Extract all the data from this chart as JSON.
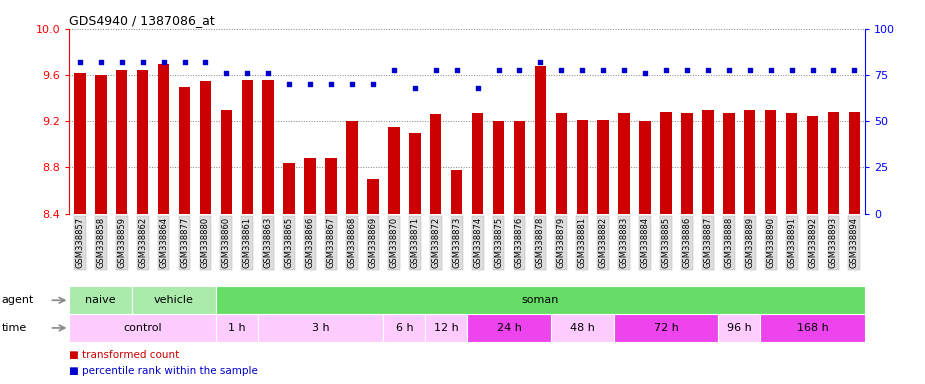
{
  "title": "GDS4940 / 1387086_at",
  "bar_color": "#cc0000",
  "dot_color": "#0000cc",
  "ylim_left": [
    8.4,
    10.0
  ],
  "ylim_right": [
    0,
    100
  ],
  "yticks_left": [
    8.4,
    8.8,
    9.2,
    9.6,
    10.0
  ],
  "yticks_right": [
    0,
    25,
    50,
    75,
    100
  ],
  "bg_color": "#ffffff",
  "plot_bg": "#ffffff",
  "gsm_labels": [
    "GSM338857",
    "GSM338858",
    "GSM338859",
    "GSM338862",
    "GSM338864",
    "GSM338877",
    "GSM338880",
    "GSM338860",
    "GSM338861",
    "GSM338863",
    "GSM338865",
    "GSM338866",
    "GSM338867",
    "GSM338868",
    "GSM338869",
    "GSM338870",
    "GSM338871",
    "GSM338872",
    "GSM338873",
    "GSM338874",
    "GSM338875",
    "GSM338876",
    "GSM338878",
    "GSM338879",
    "GSM338881",
    "GSM338882",
    "GSM338883",
    "GSM338884",
    "GSM338885",
    "GSM338886",
    "GSM338887",
    "GSM338888",
    "GSM338889",
    "GSM338890",
    "GSM338891",
    "GSM338892",
    "GSM338893",
    "GSM338894"
  ],
  "bar_values": [
    9.62,
    9.6,
    9.65,
    9.65,
    9.7,
    9.5,
    9.55,
    9.3,
    9.56,
    9.56,
    8.84,
    8.88,
    8.88,
    9.2,
    8.7,
    9.15,
    9.1,
    9.26,
    8.78,
    9.27,
    9.2,
    9.2,
    9.68,
    9.27,
    9.21,
    9.21,
    9.27,
    9.2,
    9.28,
    9.27,
    9.3,
    9.27,
    9.3,
    9.3,
    9.27,
    9.25,
    9.28,
    9.28
  ],
  "dot_values": [
    82,
    82,
    82,
    82,
    82,
    82,
    82,
    76,
    76,
    76,
    70,
    70,
    70,
    70,
    70,
    78,
    68,
    78,
    78,
    68,
    78,
    78,
    82,
    78,
    78,
    78,
    78,
    76,
    78,
    78,
    78,
    78,
    78,
    78,
    78,
    78,
    78,
    78
  ],
  "agent_groups": [
    {
      "label": "naive",
      "start": 0,
      "end": 3,
      "color": "#aaeaaa"
    },
    {
      "label": "vehicle",
      "start": 3,
      "end": 7,
      "color": "#aaeaaa"
    },
    {
      "label": "soman",
      "start": 7,
      "end": 38,
      "color": "#66dd66"
    }
  ],
  "time_groups": [
    {
      "label": "control",
      "start": 0,
      "end": 7,
      "color": "#ffccff"
    },
    {
      "label": "1 h",
      "start": 7,
      "end": 9,
      "color": "#ffccff"
    },
    {
      "label": "3 h",
      "start": 9,
      "end": 15,
      "color": "#ffccff"
    },
    {
      "label": "6 h",
      "start": 15,
      "end": 17,
      "color": "#ffccff"
    },
    {
      "label": "12 h",
      "start": 17,
      "end": 19,
      "color": "#ffccff"
    },
    {
      "label": "24 h",
      "start": 19,
      "end": 23,
      "color": "#ee44ee"
    },
    {
      "label": "48 h",
      "start": 23,
      "end": 26,
      "color": "#ffccff"
    },
    {
      "label": "72 h",
      "start": 26,
      "end": 31,
      "color": "#ee44ee"
    },
    {
      "label": "96 h",
      "start": 31,
      "end": 33,
      "color": "#ffccff"
    },
    {
      "label": "168 h",
      "start": 33,
      "end": 38,
      "color": "#ee44ee"
    }
  ],
  "legend_items": [
    {
      "label": "transformed count",
      "color": "#cc0000"
    },
    {
      "label": "percentile rank within the sample",
      "color": "#0000cc"
    }
  ]
}
